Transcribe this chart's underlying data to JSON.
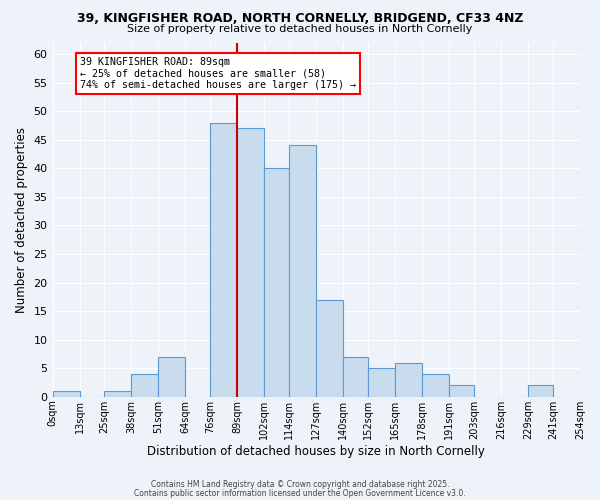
{
  "title1": "39, KINGFISHER ROAD, NORTH CORNELLY, BRIDGEND, CF33 4NZ",
  "title2": "Size of property relative to detached houses in North Cornelly",
  "xlabel": "Distribution of detached houses by size in North Cornelly",
  "ylabel": "Number of detached properties",
  "bin_edges": [
    0,
    13,
    25,
    38,
    51,
    64,
    76,
    89,
    102,
    114,
    127,
    140,
    152,
    165,
    178,
    191,
    203,
    216,
    229,
    241,
    254
  ],
  "bar_heights": [
    1,
    0,
    1,
    4,
    7,
    0,
    48,
    47,
    40,
    44,
    17,
    7,
    5,
    6,
    4,
    2,
    0,
    0,
    2,
    0
  ],
  "tick_labels": [
    "0sqm",
    "13sqm",
    "25sqm",
    "38sqm",
    "51sqm",
    "64sqm",
    "76sqm",
    "89sqm",
    "102sqm",
    "114sqm",
    "127sqm",
    "140sqm",
    "152sqm",
    "165sqm",
    "178sqm",
    "191sqm",
    "203sqm",
    "216sqm",
    "229sqm",
    "241sqm",
    "254sqm"
  ],
  "bar_color": "#c9dcee",
  "bar_edge_color": "#5b9bd5",
  "vline_x": 89,
  "vline_color": "#cc0000",
  "annotation_lines": [
    "39 KINGFISHER ROAD: 89sqm",
    "← 25% of detached houses are smaller (58)",
    "74% of semi-detached houses are larger (175) →"
  ],
  "ylim": [
    0,
    62
  ],
  "yticks": [
    0,
    5,
    10,
    15,
    20,
    25,
    30,
    35,
    40,
    45,
    50,
    55,
    60
  ],
  "background_color": "#eef2f9",
  "grid_color": "#ffffff",
  "footer_line1": "Contains HM Land Registry data © Crown copyright and database right 2025.",
  "footer_line2": "Contains public sector information licensed under the Open Government Licence v3.0."
}
